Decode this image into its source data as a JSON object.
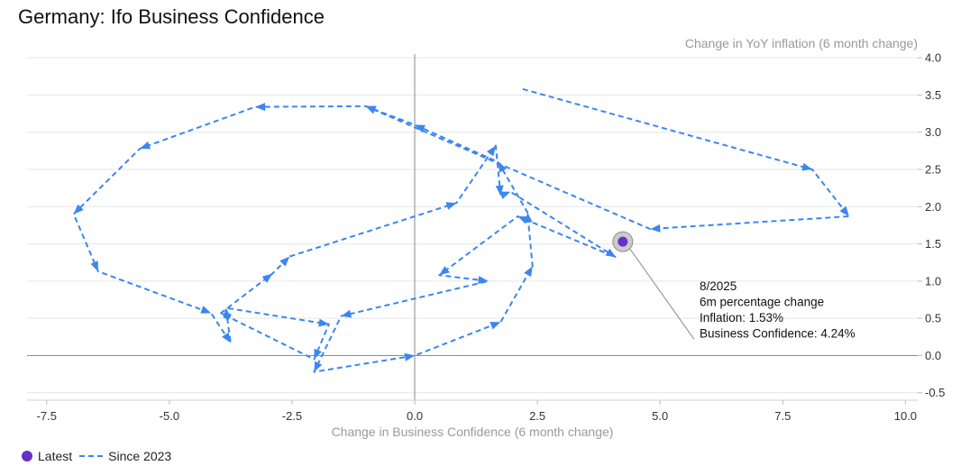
{
  "chart_data": {
    "type": "line",
    "title": "Germany: Ifo Business Confidence",
    "xlabel": "Change in Business Confidence (6 month change)",
    "ylabel": "Change in YoY inflation (6 month change)",
    "xlim": [
      -7.9,
      10.25
    ],
    "ylim": [
      -0.6,
      4.05
    ],
    "x_ticks": [
      "-7.5",
      "-5.0",
      "-2.5",
      "0.0",
      "2.5",
      "5.0",
      "7.5",
      "10.0"
    ],
    "y_ticks": [
      "4.0",
      "3.5",
      "3.0",
      "2.5",
      "2.0",
      "1.5",
      "1.0",
      "0.5",
      "0.0",
      "-0.5"
    ],
    "series": [
      {
        "name": "Since 2023",
        "color": "#3b86f0",
        "style": "dashed",
        "points": [
          [
            2.2,
            3.58
          ],
          [
            8.1,
            2.5
          ],
          [
            8.85,
            1.87
          ],
          [
            4.8,
            1.7
          ],
          [
            -1.0,
            3.35
          ],
          [
            -3.25,
            3.34
          ],
          [
            -5.6,
            2.78
          ],
          [
            -6.95,
            1.9
          ],
          [
            -6.45,
            1.13
          ],
          [
            -4.15,
            0.57
          ],
          [
            -3.75,
            0.17
          ],
          [
            -3.85,
            0.64
          ],
          [
            -1.75,
            0.42
          ],
          [
            -2.05,
            -0.05
          ],
          [
            -3.95,
            0.57
          ],
          [
            -2.9,
            1.1
          ],
          [
            -2.55,
            1.33
          ],
          [
            0.85,
            2.05
          ],
          [
            1.65,
            2.82
          ],
          [
            1.75,
            2.15
          ],
          [
            1.95,
            2.2
          ],
          [
            4.1,
            1.32
          ],
          [
            2.1,
            1.87
          ],
          [
            0.5,
            1.08
          ],
          [
            1.5,
            1.0
          ],
          [
            -1.5,
            0.53
          ],
          [
            -2.05,
            -0.22
          ],
          [
            0.0,
            0.0
          ],
          [
            1.75,
            0.45
          ],
          [
            2.4,
            1.2
          ],
          [
            2.3,
            1.92
          ],
          [
            1.7,
            2.6
          ],
          [
            0.0,
            3.1
          ],
          [
            -1.0,
            3.35
          ]
        ]
      },
      {
        "name": "Latest",
        "color": "#6a2fc4",
        "style": "marker",
        "points": [
          [
            4.24,
            1.53
          ]
        ]
      }
    ],
    "annotation": {
      "lines": [
        "8/2025",
        "6m percentage change",
        "Inflation: 1.53%",
        "Business Confidence: 4.24%"
      ]
    }
  },
  "legend": {
    "latest": "Latest",
    "since": "Since 2023"
  }
}
